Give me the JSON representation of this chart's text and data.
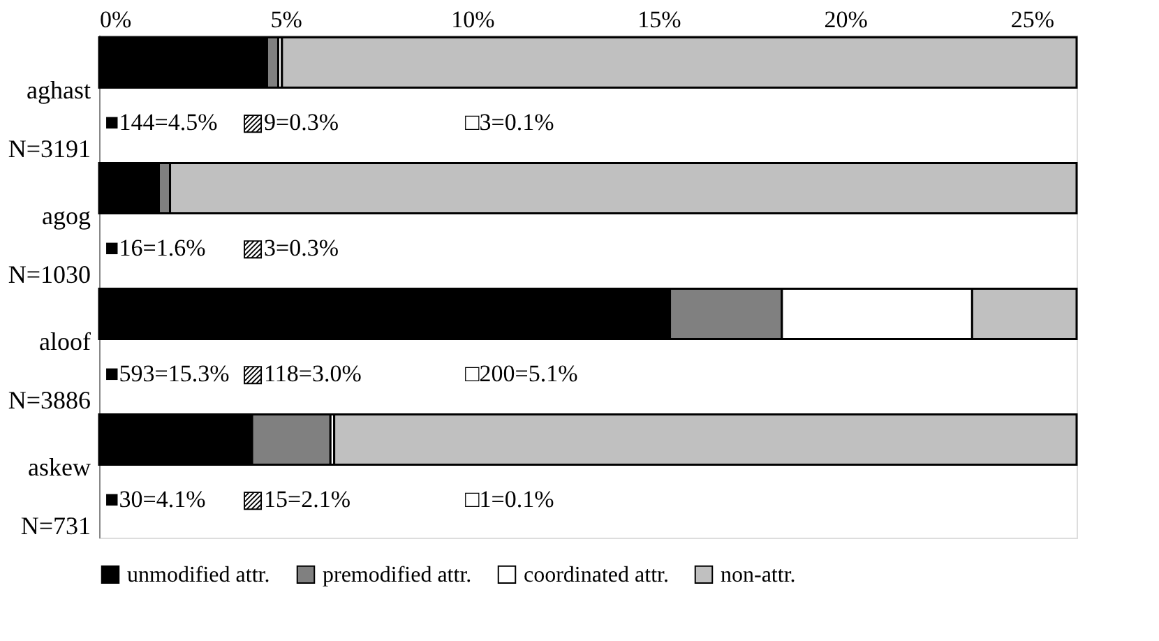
{
  "chart_data": {
    "type": "bar",
    "orientation": "horizontal",
    "stacked": true,
    "categories": [
      "aghast\nN=3191",
      "agog\nN=1030",
      "aloof\nN=3886",
      "askew\nN=731"
    ],
    "series": [
      {
        "name": "unmodified attr.",
        "color": "#000000",
        "values": [
          4.5,
          1.6,
          15.3,
          4.1
        ]
      },
      {
        "name": "premodified attr.",
        "color": "#808080",
        "values": [
          0.3,
          0.3,
          3.0,
          2.1
        ]
      },
      {
        "name": "coordinated attr.",
        "color": "#ffffff",
        "values": [
          0.1,
          0,
          5.1,
          0.1
        ]
      },
      {
        "name": "non-attr.",
        "color": "#c0c0c0",
        "values": [
          21.3,
          24.3,
          2.8,
          19.9
        ]
      }
    ],
    "annotations": [
      "■144=4.5%",
      "▨9=0.3%",
      "□3=0.1%",
      "■16=1.6%",
      "▨3=0.3%",
      "■593=15.3%",
      "▨118=3.0%",
      "□200=5.1%",
      "■30=4.1%",
      "▨15=2.1%",
      "□1=0.1%"
    ],
    "xlim": [
      0,
      26.2
    ],
    "xticks": [
      {
        "value": 0,
        "label": "0%"
      },
      {
        "value": 5,
        "label": "5%"
      },
      {
        "value": 10,
        "label": "10%"
      },
      {
        "value": 15,
        "label": "15%"
      },
      {
        "value": 20,
        "label": "20%"
      },
      {
        "value": 25,
        "label": "25%"
      }
    ],
    "grid": false,
    "legend": "bottom"
  }
}
